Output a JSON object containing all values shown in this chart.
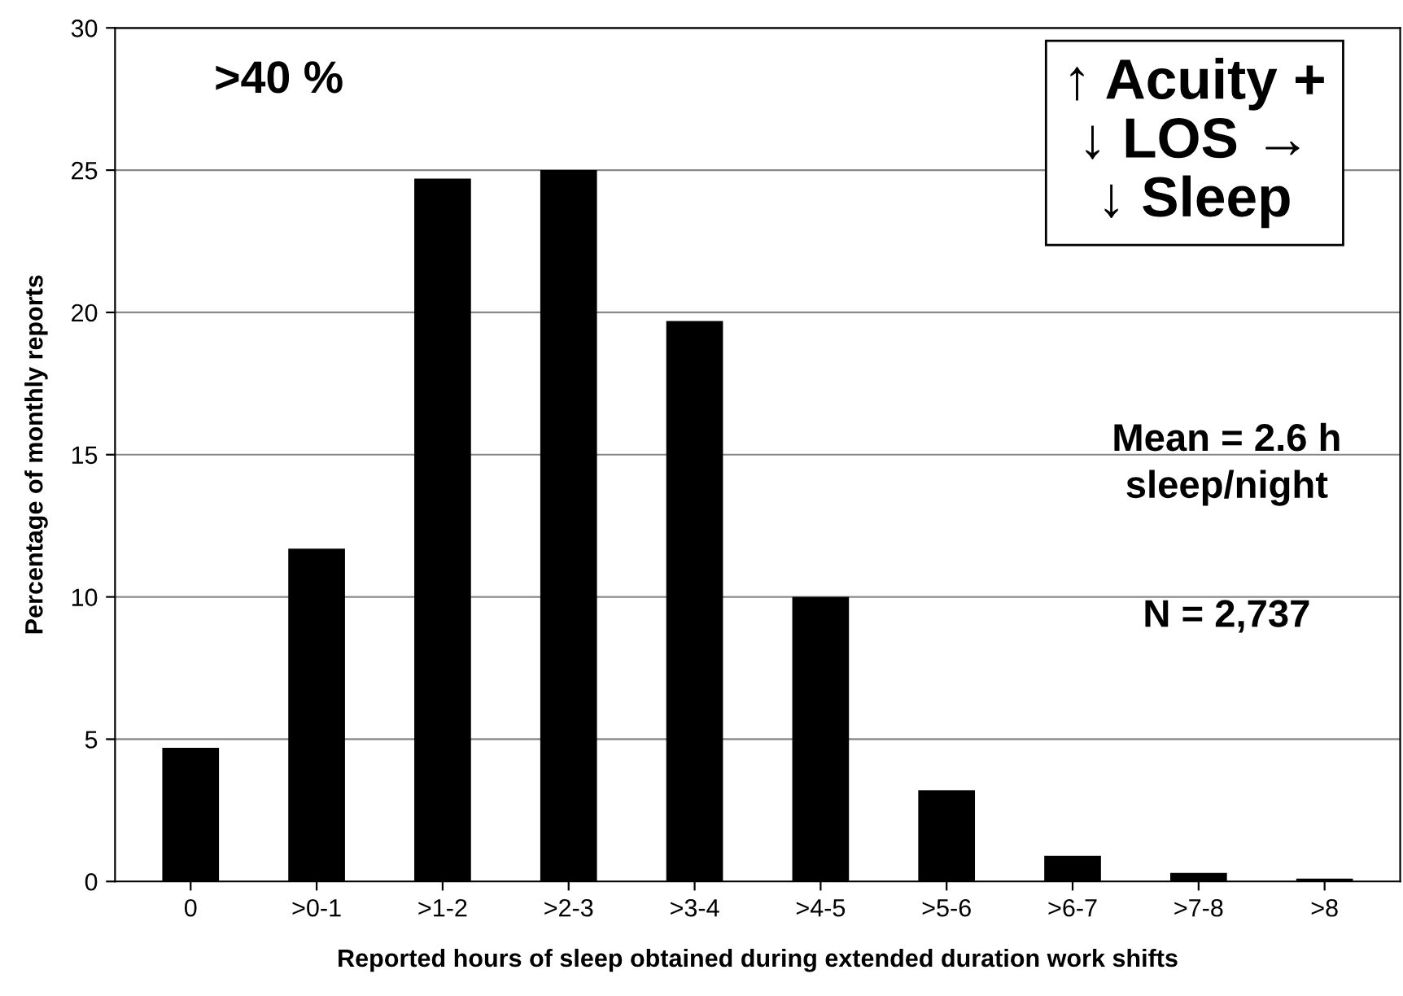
{
  "chart_data": {
    "type": "bar",
    "xlabel": "Reported hours of sleep obtained during extended duration work shifts",
    "ylabel": "Percentage of monthly reports",
    "categories": [
      "0",
      ">0-1",
      ">1-2",
      ">2-3",
      ">3-4",
      ">4-5",
      ">5-6",
      ">6-7",
      ">7-8",
      ">8"
    ],
    "values": [
      4.7,
      11.7,
      24.7,
      25.0,
      19.7,
      10.0,
      3.2,
      0.9,
      0.3,
      0.1
    ],
    "color": "#000000",
    "ylim": [
      0,
      30
    ],
    "yticks": [
      0,
      5,
      10,
      15,
      20,
      25,
      30
    ],
    "grid": "y",
    "annotations": [
      ">40 %",
      "↑ Acuity + ↓ LOS → ↓ Sleep",
      "Mean = 2.6 h sleep/night",
      "N = 2,737"
    ]
  }
}
